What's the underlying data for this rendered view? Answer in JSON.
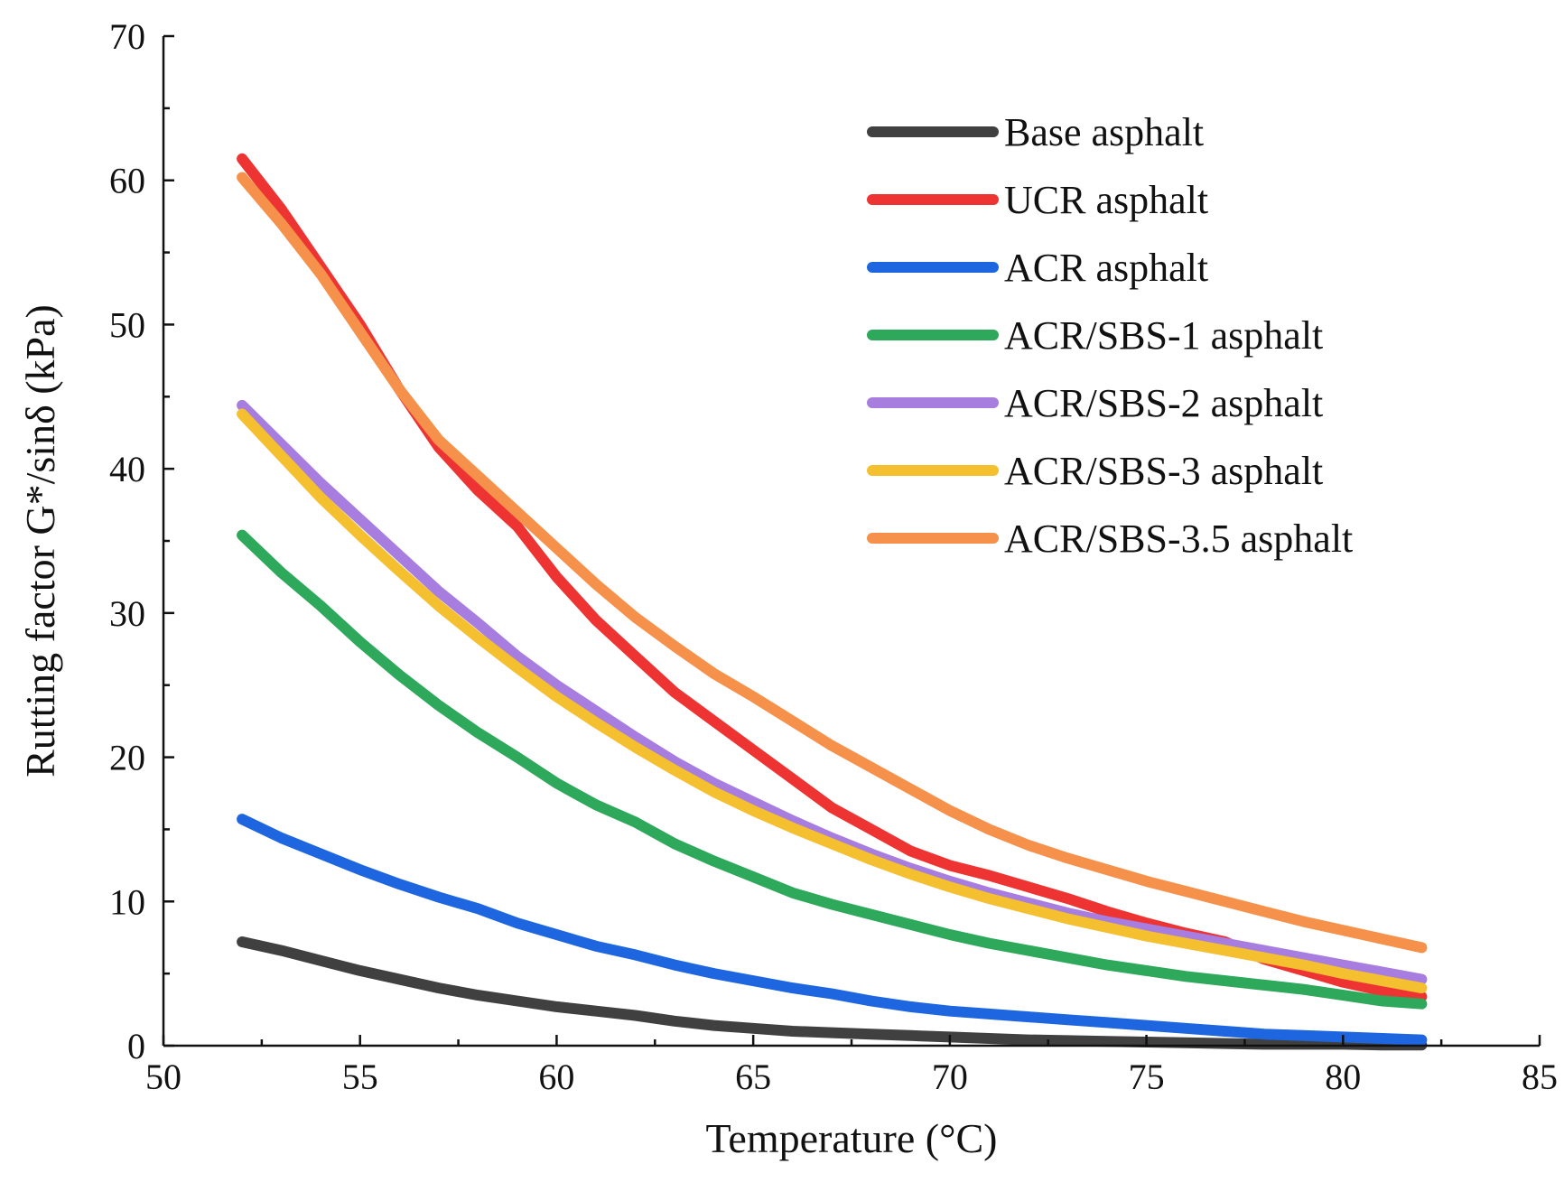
{
  "chart_data": {
    "type": "line",
    "title": "",
    "xlabel": "Temperature (°C)",
    "ylabel": "Rutting factor G*/sinδ (kPa)",
    "xlim": [
      50,
      85
    ],
    "ylim": [
      0,
      70
    ],
    "x_ticks": [
      50,
      55,
      60,
      65,
      70,
      75,
      80,
      85
    ],
    "y_ticks": [
      0,
      10,
      20,
      30,
      40,
      50,
      60,
      70
    ],
    "x_tick_labels": [
      "50",
      "55",
      "60",
      "65",
      "70",
      "75",
      "80",
      "85"
    ],
    "y_tick_labels": [
      "0",
      "10",
      "20",
      "30",
      "40",
      "50",
      "60",
      "70"
    ],
    "grid": false,
    "legend_position": "top-right",
    "x": [
      52,
      53,
      54,
      55,
      56,
      57,
      58,
      59,
      60,
      61,
      62,
      63,
      64,
      65,
      66,
      67,
      68,
      69,
      70,
      71,
      72,
      73,
      74,
      75,
      76,
      77,
      78,
      79,
      80,
      81,
      82
    ],
    "series": [
      {
        "name": "Base asphalt",
        "color": "#404040",
        "values": [
          7.2,
          6.6,
          5.9,
          5.2,
          4.6,
          4.0,
          3.5,
          3.1,
          2.7,
          2.4,
          2.1,
          1.7,
          1.4,
          1.2,
          1.0,
          0.9,
          0.8,
          0.7,
          0.6,
          0.5,
          0.4,
          0.35,
          0.3,
          0.25,
          0.2,
          0.15,
          0.1,
          0.1,
          0.1,
          0.05,
          0.05
        ]
      },
      {
        "name": "UCR asphalt",
        "color": "#ee3333",
        "values": [
          61.5,
          58.0,
          54.0,
          50.0,
          45.5,
          41.5,
          38.5,
          36.0,
          32.5,
          29.5,
          27.0,
          24.5,
          22.5,
          20.5,
          18.5,
          16.5,
          15.0,
          13.5,
          12.5,
          11.8,
          11.0,
          10.2,
          9.3,
          8.5,
          7.8,
          7.2,
          6.0,
          5.2,
          4.4,
          3.8,
          3.4
        ]
      },
      {
        "name": "ACR asphalt",
        "color": "#1e66e0",
        "values": [
          15.7,
          14.4,
          13.3,
          12.2,
          11.2,
          10.3,
          9.5,
          8.5,
          7.7,
          6.9,
          6.3,
          5.6,
          5.0,
          4.5,
          4.0,
          3.6,
          3.1,
          2.7,
          2.4,
          2.2,
          2.0,
          1.8,
          1.6,
          1.4,
          1.2,
          1.0,
          0.8,
          0.7,
          0.6,
          0.5,
          0.4
        ]
      },
      {
        "name": "ACR/SBS-1 asphalt",
        "color": "#2ea85a",
        "values": [
          35.4,
          32.8,
          30.5,
          28.0,
          25.7,
          23.6,
          21.7,
          20.0,
          18.2,
          16.7,
          15.5,
          14.0,
          12.8,
          11.7,
          10.6,
          9.8,
          9.1,
          8.4,
          7.7,
          7.1,
          6.6,
          6.1,
          5.6,
          5.2,
          4.8,
          4.5,
          4.2,
          3.9,
          3.5,
          3.1,
          2.9
        ]
      },
      {
        "name": "ACR/SBS-2 asphalt",
        "color": "#a77de0",
        "values": [
          44.4,
          41.7,
          39.0,
          36.5,
          34.0,
          31.5,
          29.3,
          27.0,
          25.0,
          23.2,
          21.4,
          19.7,
          18.2,
          16.9,
          15.6,
          14.4,
          13.3,
          12.3,
          11.4,
          10.6,
          9.9,
          9.2,
          8.6,
          8.1,
          7.6,
          7.1,
          6.6,
          6.1,
          5.6,
          5.1,
          4.6
        ]
      },
      {
        "name": "ACR/SBS-3 asphalt",
        "color": "#f5c030",
        "values": [
          43.8,
          40.9,
          38.0,
          35.4,
          32.9,
          30.5,
          28.3,
          26.2,
          24.2,
          22.4,
          20.7,
          19.1,
          17.6,
          16.3,
          15.1,
          14.0,
          12.9,
          11.9,
          11.0,
          10.2,
          9.5,
          8.8,
          8.2,
          7.6,
          7.1,
          6.6,
          6.1,
          5.6,
          5.0,
          4.5,
          4.0
        ]
      },
      {
        "name": "ACR/SBS-3.5 asphalt",
        "color": "#f5914a",
        "values": [
          60.2,
          57.0,
          53.5,
          49.5,
          45.5,
          42.0,
          39.5,
          37.0,
          34.5,
          32.0,
          29.7,
          27.7,
          25.8,
          24.2,
          22.5,
          20.8,
          19.3,
          17.8,
          16.3,
          15.0,
          13.9,
          13.0,
          12.2,
          11.4,
          10.7,
          10.0,
          9.3,
          8.6,
          8.0,
          7.4,
          6.8
        ]
      }
    ]
  }
}
